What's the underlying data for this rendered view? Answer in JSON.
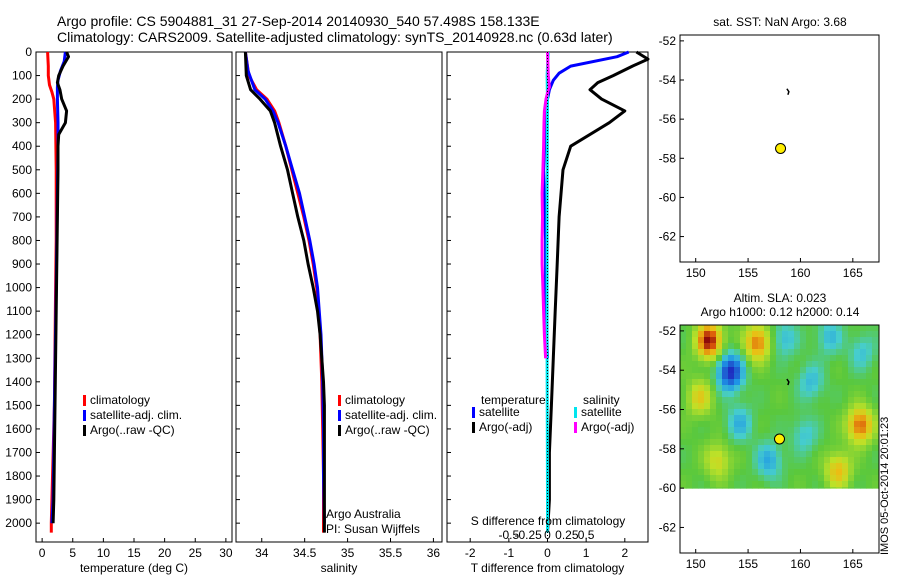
{
  "title": {
    "line1": "Argo profile: CS 5904881_31 27-Sep-2014 20140930_540 57.498S 158.133E",
    "line2": "Climatology: CARS2009. Satellite-adjusted climatology: synTS_20140928.nc (0.63d later)"
  },
  "colors": {
    "climatology": "#ff0000",
    "satellite": "#0000ff",
    "argo": "#000000",
    "sat_sal": "#00e5ee",
    "argo_sal": "#ff00ff",
    "marker": "#ffee00"
  },
  "chart_data": [
    {
      "type": "line",
      "id": "temperature",
      "xlabel": "temperature (deg C)",
      "ylabel": "",
      "xlim": [
        -1,
        31
      ],
      "ylim": [
        2080,
        0
      ],
      "xticks": [
        0,
        5,
        10,
        15,
        20,
        25,
        30
      ],
      "yticks": [
        0,
        100,
        200,
        300,
        400,
        500,
        600,
        700,
        800,
        900,
        1000,
        1100,
        1200,
        1300,
        1400,
        1500,
        1600,
        1700,
        1800,
        1900,
        2000
      ],
      "legend": [
        "climatology",
        "satellite-adj. clim.",
        "Argo(..raw -QC)"
      ],
      "series": [
        {
          "name": "climatology",
          "color_key": "climatology",
          "depth": [
            0,
            60,
            100,
            140,
            170,
            200,
            300,
            500,
            800,
            1000,
            1500,
            2000,
            2040
          ],
          "values": [
            0.9,
            1.0,
            1.0,
            1.2,
            1.6,
            1.9,
            2.2,
            2.3,
            2.3,
            2.2,
            2.0,
            1.5,
            1.5
          ]
        },
        {
          "name": "satellite-adj. clim.",
          "color_key": "satellite",
          "depth": [
            0,
            40,
            80,
            120,
            150,
            200,
            300,
            400,
            600,
            800,
            1000,
            1500,
            1900,
            2000
          ],
          "values": [
            3.8,
            3.6,
            3.0,
            2.6,
            2.5,
            2.5,
            2.6,
            2.6,
            2.5,
            2.4,
            2.3,
            2.0,
            1.8,
            1.6
          ]
        },
        {
          "name": "Argo(..raw -QC)",
          "color_key": "argo",
          "depth": [
            0,
            20,
            60,
            100,
            130,
            160,
            200,
            250,
            300,
            350,
            400,
            500,
            700,
            900,
            1100,
            1300,
            1500,
            1700,
            1900,
            2000
          ],
          "values": [
            4.0,
            4.3,
            3.4,
            2.7,
            2.5,
            2.9,
            3.2,
            4.0,
            3.8,
            2.7,
            2.6,
            2.6,
            2.5,
            2.4,
            2.3,
            2.2,
            2.1,
            2.0,
            1.9,
            1.8
          ]
        }
      ]
    },
    {
      "type": "line",
      "id": "salinity",
      "xlabel": "salinity",
      "ylabel": "",
      "xlim": [
        33.7,
        36.1
      ],
      "ylim": [
        2080,
        0
      ],
      "xticks": [
        34,
        34.5,
        35,
        35.5,
        36
      ],
      "xtick_labels": [
        "34",
        "34.5",
        "35",
        "35.5",
        "36"
      ],
      "legend": [
        "climatology",
        "satellite-adj. clim.",
        "Argo(..raw -QC)"
      ],
      "annotations": [
        "Argo Australia",
        "PI: Susan Wijffels"
      ],
      "series": [
        {
          "name": "climatology",
          "color_key": "climatology",
          "depth": [
            0,
            100,
            160,
            200,
            250,
            300,
            400,
            500,
            600,
            700,
            800,
            900,
            1000,
            1200,
            1400,
            1600,
            1800,
            2000,
            2040
          ],
          "values": [
            33.81,
            33.85,
            33.94,
            34.06,
            34.15,
            34.2,
            34.28,
            34.35,
            34.42,
            34.49,
            34.55,
            34.6,
            34.64,
            34.68,
            34.7,
            34.71,
            34.72,
            34.72,
            34.72
          ]
        },
        {
          "name": "satellite-adj. clim.",
          "color_key": "satellite",
          "depth": [
            0,
            80,
            160,
            200,
            250,
            300,
            400,
            500,
            600,
            700,
            800,
            900,
            1000,
            1200,
            1400,
            1600,
            1800,
            2000
          ],
          "values": [
            33.81,
            33.84,
            33.92,
            34.04,
            34.13,
            34.19,
            34.28,
            34.36,
            34.44,
            34.5,
            34.56,
            34.61,
            34.65,
            34.69,
            34.71,
            34.72,
            34.72,
            34.73
          ]
        },
        {
          "name": "Argo(..raw -QC)",
          "color_key": "argo",
          "depth": [
            0,
            100,
            160,
            200,
            250,
            300,
            400,
            500,
            600,
            700,
            800,
            900,
            1000,
            1100,
            1200,
            1300,
            1400,
            1500,
            1700,
            1900,
            2000,
            2040
          ],
          "values": [
            33.81,
            33.82,
            33.87,
            33.98,
            34.1,
            34.15,
            34.22,
            34.3,
            34.36,
            34.42,
            34.49,
            34.54,
            34.6,
            34.65,
            34.68,
            34.7,
            34.72,
            34.73,
            34.73,
            34.73,
            34.73,
            34.73
          ]
        }
      ]
    },
    {
      "type": "line",
      "id": "differences",
      "xlabel": "T difference from climatology",
      "x2label": "S difference from climatology",
      "xlim": [
        -2.6,
        2.6
      ],
      "ylim": [
        2080,
        0
      ],
      "xticks": [
        -2,
        -1,
        0,
        1,
        2
      ],
      "xtick_labels": [
        "-2",
        "-1",
        "0",
        "1",
        "2"
      ],
      "x2ticks": [
        -0.5,
        -0.25,
        0,
        0.25,
        0.5
      ],
      "x2tick_labels": [
        "-0.5",
        "-0.25",
        "0",
        "0.25",
        "0.5"
      ],
      "legend_headers": [
        "temperature",
        "salinity"
      ],
      "legend": [
        "satellite",
        "Argo(-adj)",
        "satellite",
        "Argo(-adj)"
      ],
      "series": [
        {
          "name": "temperature satellite",
          "color_key": "satellite",
          "depth": [
            0,
            20,
            60,
            90,
            120,
            160,
            200,
            300,
            500,
            800,
            1000,
            1300
          ],
          "values": [
            2.1,
            1.8,
            0.6,
            0.3,
            0.15,
            0.05,
            0.0,
            -0.05,
            -0.1,
            -0.05,
            -0.05,
            0.0
          ]
        },
        {
          "name": "temperature Argo(-adj)",
          "color_key": "argo",
          "depth": [
            0,
            30,
            60,
            100,
            130,
            160,
            200,
            250,
            300,
            400,
            500,
            700,
            900,
            1100,
            1300,
            1500,
            1700,
            1900,
            2040
          ],
          "values": [
            2.3,
            2.6,
            2.2,
            1.7,
            1.3,
            1.1,
            1.4,
            2.0,
            1.6,
            0.6,
            0.4,
            0.3,
            0.25,
            0.2,
            0.15,
            0.1,
            0.05,
            0.05,
            0.0
          ]
        },
        {
          "name": "salinity satellite",
          "color_key": "sat_sal",
          "depth": [
            0,
            60,
            100,
            160,
            200,
            400,
            700,
            1000,
            1300,
            1600,
            1900,
            2040
          ],
          "values": [
            0.02,
            0.0,
            -0.01,
            -0.005,
            0.0,
            -0.005,
            -0.01,
            -0.01,
            -0.01,
            -0.005,
            0.0,
            0.0
          ]
        },
        {
          "name": "salinity Argo(-adj)",
          "color_key": "argo_sal",
          "depth": [
            0,
            100,
            150,
            160,
            200,
            250,
            300,
            400,
            500,
            600,
            700,
            800,
            900,
            1000,
            1100,
            1200,
            1300
          ],
          "values": [
            0.0,
            0.02,
            0.05,
            0.02,
            -0.04,
            -0.08,
            -0.09,
            -0.1,
            -0.12,
            -0.14,
            -0.13,
            -0.14,
            -0.14,
            -0.12,
            -0.1,
            -0.08,
            -0.05
          ]
        }
      ]
    },
    {
      "type": "scatter",
      "id": "sst_map",
      "title": "sat. SST: NaN Argo: 3.68",
      "xlim": [
        148.5,
        167.5
      ],
      "ylim": [
        -63.3,
        -51.7
      ],
      "xticks": [
        150,
        155,
        160,
        165
      ],
      "yticks": [
        -52,
        -54,
        -56,
        -58,
        -60,
        -62
      ],
      "points": [
        {
          "lon": 158.1,
          "lat": -57.5,
          "kind": "argo"
        },
        {
          "lon": 158.8,
          "lat": -54.6,
          "kind": "track"
        }
      ]
    },
    {
      "type": "heatmap",
      "id": "sla_map",
      "title_line1": "Altim. SLA: 0.023",
      "title_line2": "Argo h1000: 0.12 h2000: 0.14",
      "xlim": [
        148.5,
        167.5
      ],
      "ylim": [
        -63.3,
        -51.7
      ],
      "xticks": [
        150,
        155,
        160,
        165
      ],
      "yticks": [
        -52,
        -54,
        -56,
        -58,
        -60,
        -62
      ],
      "data_lat_range": [
        -60,
        -51.7
      ],
      "blobs": [
        {
          "lon": 151.3,
          "lat": -52.5,
          "v": 1.0
        },
        {
          "lon": 153.3,
          "lat": -54.1,
          "v": -1.0
        },
        {
          "lon": 155.9,
          "lat": -52.6,
          "v": 0.75
        },
        {
          "lon": 150.4,
          "lat": -55.4,
          "v": 0.45
        },
        {
          "lon": 158.5,
          "lat": -52.4,
          "v": -0.35
        },
        {
          "lon": 161.0,
          "lat": -54.6,
          "v": -0.35
        },
        {
          "lon": 165.7,
          "lat": -56.8,
          "v": 0.8
        },
        {
          "lon": 163.6,
          "lat": -59.1,
          "v": 0.55
        },
        {
          "lon": 154.2,
          "lat": -56.7,
          "v": -0.4
        },
        {
          "lon": 157.0,
          "lat": -58.6,
          "v": -0.45
        },
        {
          "lon": 160.4,
          "lat": -57.3,
          "v": -0.3
        },
        {
          "lon": 165.9,
          "lat": -53.1,
          "v": -0.3
        },
        {
          "lon": 152.1,
          "lat": -58.6,
          "v": 0.4
        },
        {
          "lon": 162.8,
          "lat": -52.3,
          "v": -0.35
        }
      ],
      "points": [
        {
          "lon": 158.0,
          "lat": -57.5,
          "kind": "argo"
        },
        {
          "lon": 158.8,
          "lat": -54.6,
          "kind": "track"
        }
      ]
    }
  ],
  "side_label": "IMOS 05-Oct-2014 20:01:23"
}
